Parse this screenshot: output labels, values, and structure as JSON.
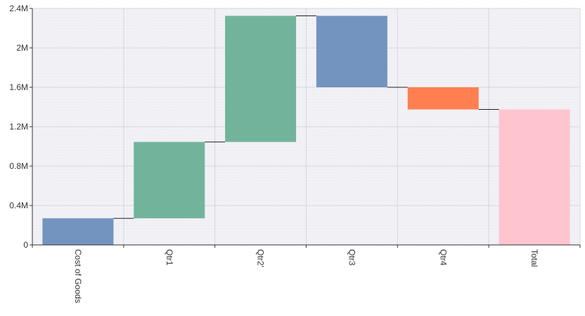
{
  "chart_data": {
    "type": "bar",
    "subtype": "waterfall",
    "title": "",
    "xlabel": "",
    "ylabel": "",
    "categories": [
      "Cost of Goods",
      "Qtr1",
      "Qtr2'",
      "Qtr3",
      "Qtr4",
      "Total"
    ],
    "bars": [
      {
        "category": "Cost of Goods",
        "start": 0,
        "end": 270000,
        "color": "#7394bf"
      },
      {
        "category": "Qtr1",
        "start": 270000,
        "end": 1045000,
        "color": "#72b49b"
      },
      {
        "category": "Qtr2'",
        "start": 1045000,
        "end": 2325000,
        "color": "#72b49b"
      },
      {
        "category": "Qtr3",
        "start": 2325000,
        "end": 1600000,
        "color": "#7394bf"
      },
      {
        "category": "Qtr4",
        "start": 1600000,
        "end": 1375000,
        "color": "#ff7f50"
      },
      {
        "category": "Total",
        "start": 0,
        "end": 1375000,
        "color": "#ffc5cf"
      }
    ],
    "y_ticks": [
      {
        "value": 0,
        "label": "0"
      },
      {
        "value": 400000,
        "label": "0.4M"
      },
      {
        "value": 800000,
        "label": "0.8M"
      },
      {
        "value": 1200000,
        "label": "1.2M"
      },
      {
        "value": 1600000,
        "label": "1.6M"
      },
      {
        "value": 2000000,
        "label": "2M"
      },
      {
        "value": 2400000,
        "label": "2.4M"
      }
    ],
    "ylim": [
      0,
      2400000
    ],
    "grid": true,
    "connectors": true,
    "legend": "none",
    "colors": {
      "plot_background": "#f2f2f7",
      "grid": "#d6d6de",
      "axis": "#333333",
      "connector": "#222222"
    }
  }
}
